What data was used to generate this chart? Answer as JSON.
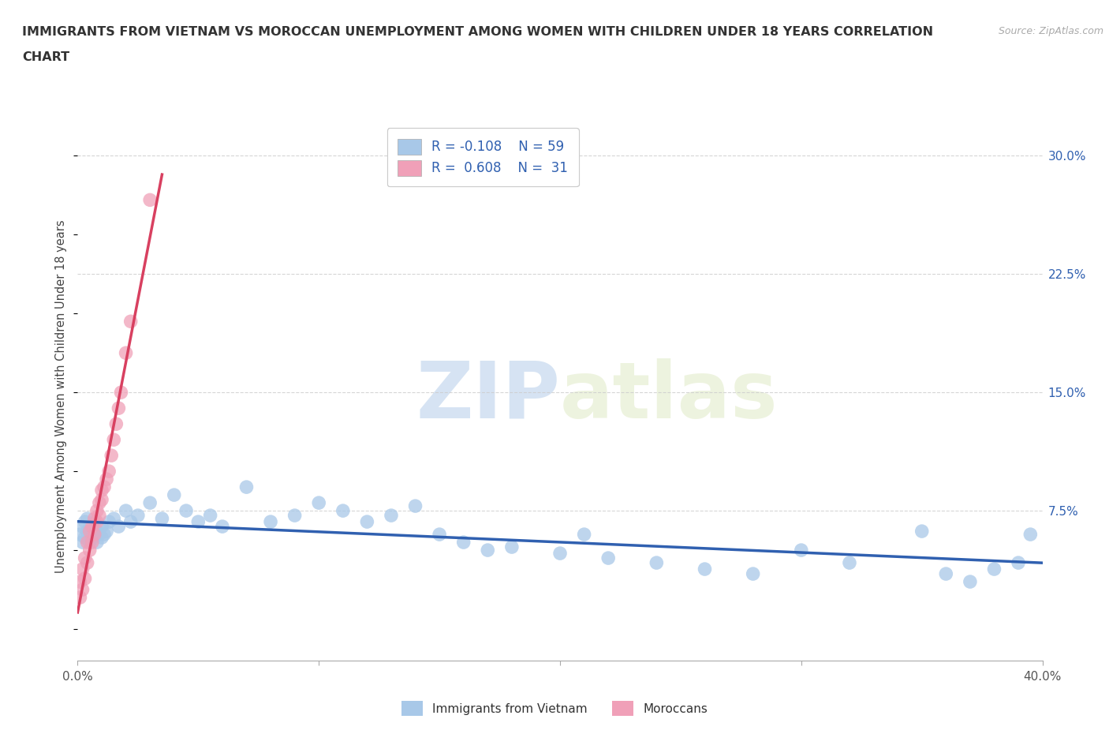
{
  "title_line1": "IMMIGRANTS FROM VIETNAM VS MOROCCAN UNEMPLOYMENT AMONG WOMEN WITH CHILDREN UNDER 18 YEARS CORRELATION",
  "title_line2": "CHART",
  "source": "Source: ZipAtlas.com",
  "ylabel": "Unemployment Among Women with Children Under 18 years",
  "xlim": [
    0.0,
    0.4
  ],
  "ylim": [
    -0.02,
    0.315
  ],
  "xticks": [
    0.0,
    0.1,
    0.2,
    0.3,
    0.4
  ],
  "xtick_labels": [
    "0.0%",
    "",
    "",
    "",
    "40.0%"
  ],
  "yticks_right": [
    0.075,
    0.15,
    0.225,
    0.3
  ],
  "ytick_right_labels": [
    "7.5%",
    "15.0%",
    "22.5%",
    "30.0%"
  ],
  "watermark_zip": "ZIP",
  "watermark_atlas": "atlas",
  "blue_scatter_color": "#a8c8e8",
  "pink_scatter_color": "#f0a0b8",
  "blue_line_color": "#3060b0",
  "pink_line_color": "#d84060",
  "legend_text_color": "#3060b0",
  "R1": "-0.108",
  "N1": "59",
  "R2": "0.608",
  "N2": "31",
  "series1_label": "Immigrants from Vietnam",
  "series2_label": "Moroccans",
  "vietnam_x": [
    0.001,
    0.002,
    0.002,
    0.003,
    0.003,
    0.004,
    0.004,
    0.005,
    0.005,
    0.006,
    0.006,
    0.007,
    0.007,
    0.008,
    0.008,
    0.009,
    0.01,
    0.01,
    0.011,
    0.012,
    0.013,
    0.015,
    0.017,
    0.02,
    0.022,
    0.025,
    0.03,
    0.035,
    0.04,
    0.045,
    0.05,
    0.055,
    0.06,
    0.07,
    0.08,
    0.09,
    0.1,
    0.11,
    0.12,
    0.13,
    0.14,
    0.15,
    0.16,
    0.17,
    0.18,
    0.2,
    0.21,
    0.22,
    0.24,
    0.26,
    0.28,
    0.3,
    0.32,
    0.35,
    0.36,
    0.37,
    0.38,
    0.39,
    0.395
  ],
  "vietnam_y": [
    0.06,
    0.055,
    0.065,
    0.058,
    0.068,
    0.062,
    0.07,
    0.055,
    0.063,
    0.058,
    0.065,
    0.06,
    0.068,
    0.055,
    0.062,
    0.06,
    0.058,
    0.065,
    0.06,
    0.062,
    0.068,
    0.07,
    0.065,
    0.075,
    0.068,
    0.072,
    0.08,
    0.07,
    0.085,
    0.075,
    0.068,
    0.072,
    0.065,
    0.09,
    0.068,
    0.072,
    0.08,
    0.075,
    0.068,
    0.072,
    0.078,
    0.06,
    0.055,
    0.05,
    0.052,
    0.048,
    0.06,
    0.045,
    0.042,
    0.038,
    0.035,
    0.05,
    0.042,
    0.062,
    0.035,
    0.03,
    0.038,
    0.042,
    0.06
  ],
  "morocco_x": [
    0.001,
    0.001,
    0.002,
    0.002,
    0.003,
    0.003,
    0.004,
    0.004,
    0.005,
    0.005,
    0.006,
    0.006,
    0.007,
    0.007,
    0.008,
    0.008,
    0.009,
    0.009,
    0.01,
    0.01,
    0.011,
    0.012,
    0.013,
    0.014,
    0.015,
    0.016,
    0.017,
    0.018,
    0.02,
    0.022,
    0.03
  ],
  "morocco_y": [
    0.02,
    0.03,
    0.025,
    0.038,
    0.032,
    0.045,
    0.042,
    0.055,
    0.05,
    0.062,
    0.055,
    0.065,
    0.06,
    0.07,
    0.068,
    0.075,
    0.072,
    0.08,
    0.082,
    0.088,
    0.09,
    0.095,
    0.1,
    0.11,
    0.12,
    0.13,
    0.14,
    0.15,
    0.175,
    0.195,
    0.272
  ],
  "background_color": "#ffffff",
  "grid_color": "#cccccc"
}
